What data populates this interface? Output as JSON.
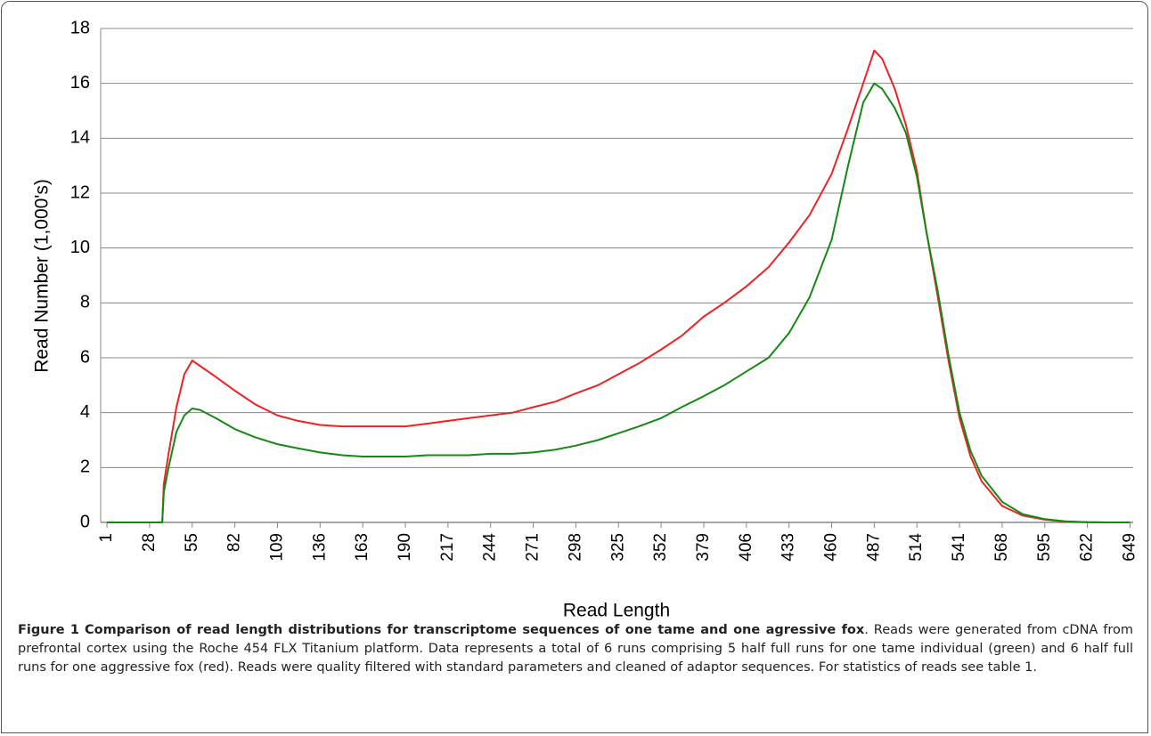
{
  "chart_data": {
    "type": "line",
    "ylabel": "Read Number (1,000's)",
    "xlabel": "Read Length",
    "x": [
      1,
      10,
      20,
      30,
      36,
      37,
      40,
      45,
      50,
      55,
      60,
      70,
      82,
      95,
      109,
      122,
      136,
      150,
      163,
      177,
      190,
      204,
      217,
      230,
      244,
      258,
      271,
      285,
      298,
      312,
      325,
      338,
      352,
      365,
      379,
      392,
      406,
      420,
      433,
      446,
      460,
      470,
      480,
      487,
      492,
      500,
      507,
      514,
      520,
      527,
      534,
      541,
      548,
      555,
      568,
      581,
      595,
      608,
      622,
      635,
      649
    ],
    "series": [
      {
        "color": "#ee2222",
        "values": [
          0,
          0,
          0,
          0,
          0,
          1.4,
          2.5,
          4.2,
          5.4,
          5.9,
          5.7,
          5.3,
          4.8,
          4.3,
          3.9,
          3.7,
          3.55,
          3.5,
          3.5,
          3.5,
          3.5,
          3.6,
          3.7,
          3.8,
          3.9,
          4.0,
          4.2,
          4.4,
          4.7,
          5.0,
          5.4,
          5.8,
          6.3,
          6.8,
          7.5,
          8.0,
          8.6,
          9.3,
          10.2,
          11.2,
          12.7,
          14.3,
          16.0,
          17.2,
          16.9,
          15.8,
          14.5,
          12.8,
          10.6,
          8.3,
          5.9,
          3.8,
          2.4,
          1.5,
          0.6,
          0.25,
          0.1,
          0.03,
          0.01,
          0,
          0
        ]
      },
      {
        "color": "#148a14",
        "values": [
          0,
          0,
          0,
          0,
          0,
          1.1,
          2.0,
          3.3,
          3.9,
          4.15,
          4.1,
          3.8,
          3.4,
          3.1,
          2.85,
          2.7,
          2.55,
          2.45,
          2.4,
          2.4,
          2.4,
          2.45,
          2.45,
          2.45,
          2.5,
          2.5,
          2.55,
          2.65,
          2.8,
          3.0,
          3.25,
          3.5,
          3.8,
          4.2,
          4.6,
          5.0,
          5.5,
          6.0,
          6.9,
          8.2,
          10.3,
          12.9,
          15.3,
          16.0,
          15.8,
          15.1,
          14.2,
          12.6,
          10.6,
          8.5,
          6.1,
          4.0,
          2.6,
          1.7,
          0.75,
          0.3,
          0.12,
          0.04,
          0.01,
          0,
          0
        ]
      }
    ],
    "xlim": [
      -3,
      651
    ],
    "xticks": [
      1,
      28,
      55,
      82,
      109,
      136,
      163,
      190,
      217,
      244,
      271,
      298,
      325,
      352,
      379,
      406,
      433,
      460,
      487,
      514,
      541,
      568,
      595,
      622,
      649
    ],
    "ylim": [
      0,
      18
    ],
    "yticks": [
      0,
      2,
      4,
      6,
      8,
      10,
      12,
      14,
      16,
      18
    ],
    "grid": true
  },
  "caption": {
    "label": "Figure 1",
    "title": "Comparison of read length distributions for transcriptome sequences of one tame and one agressive fox",
    "text": ". Reads were generated from cDNA from prefrontal cortex using the Roche 454 FLX Titanium platform. Data represents a total of 6 runs comprising 5 half full runs for one tame individual (green) and 6 half full runs for one aggressive fox (red). Reads were quality filtered with standard parameters and cleaned of adaptor sequences. For statistics of reads see table 1."
  }
}
